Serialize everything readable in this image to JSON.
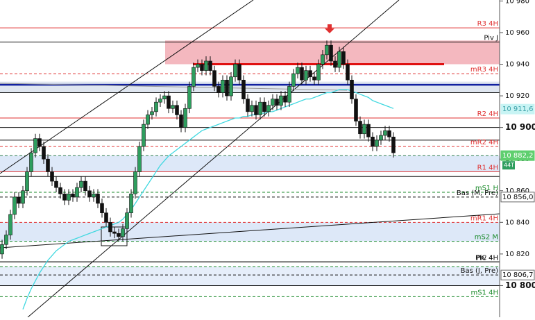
{
  "chart_data": {
    "type": "candlestick",
    "ylim": [
      10780,
      10980
    ],
    "yticks": [
      {
        "value": 10980,
        "label": "10 980"
      },
      {
        "value": 10960,
        "label": "10 960"
      },
      {
        "value": 10940,
        "label": "10 940"
      },
      {
        "value": 10920,
        "label": "10 920"
      },
      {
        "value": 10900,
        "label": "10 900",
        "bold": true
      },
      {
        "value": 10880,
        "label": "10 880"
      },
      {
        "value": 10860,
        "label": "10 860"
      },
      {
        "value": 10840,
        "label": "10 840"
      },
      {
        "value": 10820,
        "label": "10 820"
      },
      {
        "value": 10800,
        "label": "10 800",
        "bold": true
      }
    ],
    "up_color": "#2e9e5e",
    "down_color": "#111111",
    "candles": [
      [
        10820,
        10829,
        10817,
        10826
      ],
      [
        10826,
        10835,
        10823,
        10832
      ],
      [
        10832,
        10848,
        10829,
        10845
      ],
      [
        10845,
        10859,
        10842,
        10856
      ],
      [
        10856,
        10859,
        10849,
        10852
      ],
      [
        10852,
        10863,
        10849,
        10860
      ],
      [
        10860,
        10875,
        10857,
        10872
      ],
      [
        10872,
        10887,
        10869,
        10884
      ],
      [
        10884,
        10896,
        10881,
        10893
      ],
      [
        10893,
        10896,
        10885,
        10888
      ],
      [
        10888,
        10891,
        10877,
        10880
      ],
      [
        10880,
        10883,
        10869,
        10872
      ],
      [
        10872,
        10875,
        10863,
        10866
      ],
      [
        10866,
        10869,
        10859,
        10862
      ],
      [
        10862,
        10865,
        10855,
        10858
      ],
      [
        10858,
        10861,
        10851,
        10854
      ],
      [
        10854,
        10861,
        10851,
        10858
      ],
      [
        10858,
        10861,
        10853,
        10856
      ],
      [
        10856,
        10865,
        10853,
        10862
      ],
      [
        10862,
        10869,
        10859,
        10866
      ],
      [
        10866,
        10869,
        10857,
        10860
      ],
      [
        10860,
        10863,
        10853,
        10856
      ],
      [
        10856,
        10861,
        10853,
        10858
      ],
      [
        10858,
        10861,
        10849,
        10852
      ],
      [
        10852,
        10855,
        10843,
        10846
      ],
      [
        10846,
        10849,
        10837,
        10840
      ],
      [
        10840,
        10843,
        10831,
        10834
      ],
      [
        10834,
        10837,
        10830,
        10833
      ],
      [
        10833,
        10836,
        10828,
        10831
      ],
      [
        10831,
        10839,
        10828,
        10836
      ],
      [
        10836,
        10849,
        10833,
        10846
      ],
      [
        10846,
        10861,
        10843,
        10858
      ],
      [
        10858,
        10875,
        10855,
        10872
      ],
      [
        10872,
        10891,
        10869,
        10888
      ],
      [
        10888,
        10905,
        10885,
        10902
      ],
      [
        10902,
        10911,
        10899,
        10908
      ],
      [
        10908,
        10913,
        10905,
        10910
      ],
      [
        10910,
        10919,
        10907,
        10916
      ],
      [
        10916,
        10921,
        10913,
        10918
      ],
      [
        10918,
        10923,
        10915,
        10920
      ],
      [
        10920,
        10923,
        10909,
        10912
      ],
      [
        10912,
        10917,
        10909,
        10914
      ],
      [
        10914,
        10917,
        10905,
        10908
      ],
      [
        10908,
        10911,
        10897,
        10900
      ],
      [
        10900,
        10915,
        10897,
        10912
      ],
      [
        10912,
        10929,
        10909,
        10926
      ],
      [
        10926,
        10941,
        10923,
        10938
      ],
      [
        10938,
        10943,
        10935,
        10940
      ],
      [
        10940,
        10943,
        10933,
        10936
      ],
      [
        10936,
        10945,
        10933,
        10942
      ],
      [
        10942,
        10945,
        10933,
        10936
      ],
      [
        10936,
        10939,
        10923,
        10926
      ],
      [
        10926,
        10929,
        10919,
        10922
      ],
      [
        10922,
        10933,
        10919,
        10930
      ],
      [
        10930,
        10933,
        10917,
        10920
      ],
      [
        10920,
        10935,
        10917,
        10932
      ],
      [
        10932,
        10943,
        10929,
        10940
      ],
      [
        10940,
        10943,
        10927,
        10930
      ],
      [
        10930,
        10933,
        10915,
        10918
      ],
      [
        10918,
        10921,
        10907,
        10910
      ],
      [
        10910,
        10917,
        10907,
        10914
      ],
      [
        10914,
        10917,
        10905,
        10908
      ],
      [
        10908,
        10919,
        10905,
        10916
      ],
      [
        10916,
        10919,
        10907,
        10910
      ],
      [
        10910,
        10917,
        10907,
        10914
      ],
      [
        10914,
        10921,
        10911,
        10918
      ],
      [
        10918,
        10921,
        10911,
        10914
      ],
      [
        10914,
        10923,
        10911,
        10920
      ],
      [
        10920,
        10923,
        10913,
        10916
      ],
      [
        10916,
        10929,
        10913,
        10926
      ],
      [
        10926,
        10937,
        10923,
        10934
      ],
      [
        10934,
        10941,
        10931,
        10938
      ],
      [
        10938,
        10941,
        10927,
        10930
      ],
      [
        10930,
        10939,
        10927,
        10936
      ],
      [
        10936,
        10939,
        10929,
        10932
      ],
      [
        10932,
        10935,
        10927,
        10930
      ],
      [
        10930,
        10943,
        10927,
        10940
      ],
      [
        10940,
        10949,
        10937,
        10946
      ],
      [
        10946,
        10955,
        10943,
        10952
      ],
      [
        10952,
        10955,
        10939,
        10942
      ],
      [
        10942,
        10945,
        10935,
        10938
      ],
      [
        10938,
        10951,
        10935,
        10948
      ],
      [
        10948,
        10951,
        10937,
        10940
      ],
      [
        10940,
        10943,
        10927,
        10930
      ],
      [
        10930,
        10933,
        10915,
        10918
      ],
      [
        10918,
        10921,
        10901,
        10904
      ],
      [
        10904,
        10907,
        10893,
        10896
      ],
      [
        10896,
        10905,
        10893,
        10902
      ],
      [
        10902,
        10905,
        10891,
        10894
      ],
      [
        10894,
        10897,
        10885,
        10888
      ],
      [
        10888,
        10895,
        10885,
        10892
      ],
      [
        10892,
        10898,
        10889,
        10895
      ],
      [
        10895,
        10901,
        10892,
        10898
      ],
      [
        10898,
        10901,
        10891,
        10894
      ],
      [
        10894,
        10897,
        10881,
        10884
      ]
    ],
    "moving_average": {
      "color": "#3fd8e0",
      "values": [
        null,
        null,
        null,
        null,
        null,
        10785,
        10792,
        10798,
        10803,
        10808,
        10812,
        10816,
        10819,
        10822,
        10824,
        10826,
        10828,
        10829,
        10830,
        10831,
        10832,
        10833,
        10834,
        10835,
        10836,
        10837,
        10838,
        10839,
        10840,
        10842,
        10845,
        10848,
        10852,
        10856,
        10860,
        10864,
        10868,
        10872,
        10876,
        10879,
        10882,
        10884,
        10886,
        10888,
        10890,
        10892,
        10894,
        10896,
        10898,
        10899,
        10900,
        10901,
        10902,
        10903,
        10904,
        10905,
        10906,
        10906,
        10907,
        10907,
        10908,
        10908,
        10909,
        10909,
        10910,
        10910,
        10911,
        10912,
        10913,
        10914,
        10915,
        10916,
        10917,
        10918,
        10918,
        10919,
        10920,
        10921,
        10922,
        10922,
        10923,
        10924,
        10924,
        10924,
        10923,
        10922,
        10921,
        10920,
        10919,
        10917,
        10916,
        10915,
        10914,
        10913,
        10912
      ]
    },
    "zones": [
      {
        "from": 10955,
        "to": 10940,
        "color": "#f4b8bf"
      },
      {
        "from": 10929,
        "to": 10922,
        "color": "#dfe6f0"
      },
      {
        "from": 10882.2,
        "to": 10872,
        "color": "#dde8f8"
      },
      {
        "from": 10840,
        "to": 10828,
        "color": "#dde8f8"
      },
      {
        "from": 10812,
        "to": 10800,
        "color": "#e6eefa"
      }
    ],
    "resistance_line": {
      "value": 10940,
      "color": "#e01010"
    },
    "levels": [
      {
        "name": "R3 4H",
        "value": 10963,
        "color": "#e03030",
        "dash": false
      },
      {
        "name": "Piv J",
        "value": 10954,
        "color": "#111111",
        "dash": false
      },
      {
        "name": "mR3 4H",
        "value": 10934,
        "color": "#e03030",
        "dash": true
      },
      {
        "value": 10927,
        "color": "#1020a0",
        "dash": false
      },
      {
        "value": 10922,
        "color": "#111111",
        "dash": false
      },
      {
        "name": "R2 4H",
        "value": 10906,
        "color": "#e03030",
        "dash": false
      },
      {
        "value": 10900,
        "color": "#111111",
        "dash": false
      },
      {
        "value": 10892,
        "color": "#111111",
        "dash": false
      },
      {
        "name": "mR2 4H",
        "value": 10888,
        "color": "#e03030",
        "dash": true
      },
      {
        "value": 10882.2,
        "color": "#2a7a4a",
        "dash": true
      },
      {
        "name": "R1 4H",
        "value": 10872,
        "color": "#e03030",
        "dash": false
      },
      {
        "value": 10869,
        "color": "#111111",
        "dash": false
      },
      {
        "name": "mS1 H",
        "value": 10859,
        "color": "#1a8a2a",
        "dash": true
      },
      {
        "name": "Bas (M, Pre)",
        "value": 10856,
        "color": "#111111",
        "dash": true
      },
      {
        "name": "mR1 4H",
        "value": 10840,
        "color": "#e03030",
        "dash": true
      },
      {
        "name": "mS2 M",
        "value": 10828,
        "color": "#1a8a2a",
        "dash": true
      },
      {
        "name": "PIC 4H",
        "value": 10815,
        "color": "#111111",
        "dash": false
      },
      {
        "name": "Piv 4H",
        "value": 10815,
        "color": "#111111",
        "dash": false
      },
      {
        "value": 10812,
        "color": "#1a8a2a",
        "dash": true
      },
      {
        "name": "Bas (J, Pre)",
        "value": 10806.7,
        "color": "#111111",
        "dash": true
      },
      {
        "value": 10800,
        "color": "#111111",
        "dash": false
      },
      {
        "name": "mS1 4H",
        "value": 10793,
        "color": "#1a8a2a",
        "dash": true
      }
    ],
    "price_tags": [
      {
        "value": 10911.6,
        "label": "10 911,6",
        "color": "#c8f4f4",
        "text_color": "#3aa0a8"
      },
      {
        "value": 10882.2,
        "label": "10 882,2",
        "color": "#5fcf6f",
        "text_color": "#ffffff",
        "note": "44T"
      },
      {
        "value": 10856.0,
        "label": "10 856,0",
        "color": "#ffffff",
        "text_color": "#111111"
      },
      {
        "value": 10806.7,
        "label": "10 806,7",
        "color": "#ffffff",
        "text_color": "#111111"
      }
    ]
  }
}
